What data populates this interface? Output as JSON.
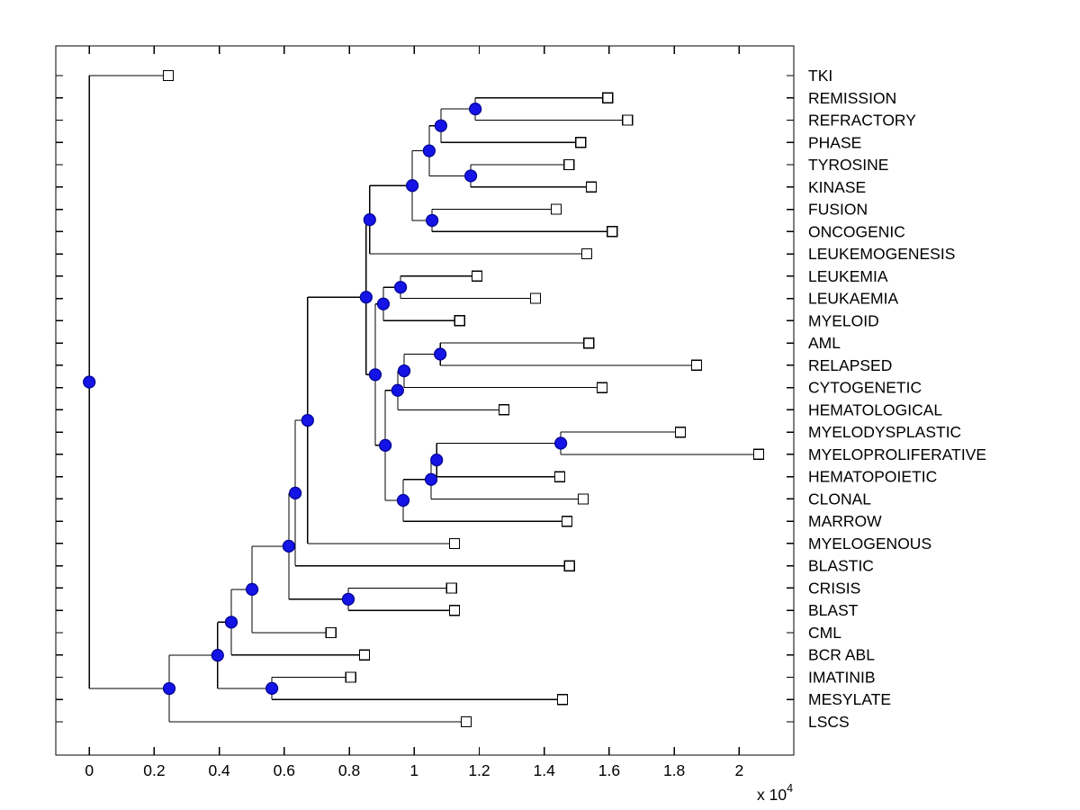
{
  "figure": {
    "background": "#ffffff",
    "line_color": "#000000",
    "node_color": "#1414e6",
    "node_edge_color": "#000090",
    "leaf_marker_fill": "#ffffff",
    "leaf_marker_edge": "#000000"
  },
  "chart_data": {
    "type": "dendrogram",
    "orientation": "left-to-right",
    "title": "",
    "xlabel": "",
    "ylabel": "",
    "exponent_label": "x 10",
    "exponent_power": "4",
    "grid": false,
    "legend_position": "none",
    "xlim": [
      -1030,
      21680
    ],
    "x_tick_values": [
      0,
      2000,
      4000,
      6000,
      8000,
      10000,
      12000,
      14000,
      16000,
      18000,
      20000
    ],
    "x_tick_labels": [
      "0",
      "0.2",
      "0.4",
      "0.6",
      "0.8",
      "1",
      "1.2",
      "1.4",
      "1.6",
      "1.8",
      "2"
    ],
    "leaf_order": [
      "TKI",
      "REMISSION",
      "REFRACTORY",
      "PHASE",
      "TYROSINE",
      "KINASE",
      "FUSION",
      "ONCOGENIC",
      "LEUKEMOGENESIS",
      "LEUKEMIA",
      "LEUKAEMIA",
      "MYELOID",
      "AML",
      "RELAPSED",
      "CYTOGENETIC",
      "HEMATOLOGICAL",
      "MYELODYSPLASTIC",
      "MYELOPROLIFERATIVE",
      "HEMATOPOIETIC",
      "CLONAL",
      "MARROW",
      "MYELOGENOUS",
      "BLASTIC",
      "CRISIS",
      "BLAST",
      "CML",
      "BCR ABL",
      "IMATINIB",
      "MESYLATE",
      "LSCS"
    ],
    "leaf_x": {
      "TKI": 2430,
      "REMISSION": 15950,
      "REFRACTORY": 16560,
      "PHASE": 15120,
      "TYROSINE": 14760,
      "KINASE": 15450,
      "FUSION": 14370,
      "ONCOGENIC": 16090,
      "LEUKEMOGENESIS": 15310,
      "LEUKEMIA": 11930,
      "LEUKAEMIA": 13730,
      "MYELOID": 11400,
      "AML": 15370,
      "RELAPSED": 18690,
      "CYTOGENETIC": 15780,
      "HEMATOLOGICAL": 12760,
      "MYELODYSPLASTIC": 18190,
      "MYELOPROLIFERATIVE": 20600,
      "HEMATOPOIETIC": 14480,
      "CLONAL": 15200,
      "MARROW": 14700,
      "MYELOGENOUS": 11240,
      "BLASTIC": 14780,
      "CRISIS": 11150,
      "BLAST": 11240,
      "CML": 7440,
      "BCR ABL": 8470,
      "IMATINIB": 8050,
      "MESYLATE": 14560,
      "LSCS": 11600
    },
    "tree": {
      "x": 0,
      "children": [
        "TKI",
        {
          "x": 2460,
          "children": [
            {
              "x": 3950,
              "children": [
                {
                  "x": 4370,
                  "children": [
                    {
                      "x": 5010,
                      "children": [
                        {
                          "x": 6140,
                          "children": [
                            {
                              "x": 6340,
                              "children": [
                                {
                                  "x": 6720,
                                  "children": [
                                    {
                                      "x": 8520,
                                      "children": [
                                        {
                                          "x": 8630,
                                          "children": [
                                            {
                                              "x": 9940,
                                              "children": [
                                                {
                                                  "x": 10460,
                                                  "children": [
                                                    {
                                                      "x": 10820,
                                                      "children": [
                                                        {
                                                          "x": 11880,
                                                          "children": [
                                                            "REMISSION",
                                                            "REFRACTORY"
                                                          ]
                                                        },
                                                        "PHASE"
                                                      ]
                                                    },
                                                    {
                                                      "x": 11740,
                                                      "children": [
                                                        "TYROSINE",
                                                        "KINASE"
                                                      ]
                                                    }
                                                  ]
                                                },
                                                {
                                                  "x": 10550,
                                                  "children": [
                                                    "FUSION",
                                                    "ONCOGENIC"
                                                  ]
                                                }
                                              ]
                                            },
                                            "LEUKEMOGENESIS"
                                          ]
                                        },
                                        {
                                          "x": 8800,
                                          "children": [
                                            {
                                              "x": 9050,
                                              "children": [
                                                {
                                                  "x": 9580,
                                                  "children": [
                                                    "LEUKEMIA",
                                                    "LEUKAEMIA"
                                                  ]
                                                },
                                                "MYELOID"
                                              ]
                                            },
                                            {
                                              "x": 9110,
                                              "children": [
                                                {
                                                  "x": 9490,
                                                  "children": [
                                                    {
                                                      "x": 9690,
                                                      "children": [
                                                        {
                                                          "x": 10800,
                                                          "children": [
                                                            "AML",
                                                            "RELAPSED"
                                                          ]
                                                        },
                                                        "CYTOGENETIC"
                                                      ]
                                                    },
                                                    "HEMATOLOGICAL"
                                                  ]
                                                },
                                                {
                                                  "x": 9660,
                                                  "children": [
                                                    {
                                                      "x": 10520,
                                                      "children": [
                                                        {
                                                          "x": 10690,
                                                          "children": [
                                                            {
                                                              "x": 14510,
                                                              "children": [
                                                                "MYELODYSPLASTIC",
                                                                "MYELOPROLIFERATIVE"
                                                              ]
                                                            },
                                                            "HEMATOPOIETIC"
                                                          ]
                                                        },
                                                        "CLONAL"
                                                      ]
                                                    },
                                                    "MARROW"
                                                  ]
                                                }
                                              ]
                                            }
                                          ]
                                        }
                                      ]
                                    },
                                    "MYELOGENOUS"
                                  ]
                                },
                                "BLASTIC"
                              ]
                            },
                            {
                              "x": 7970,
                              "children": [
                                "CRISIS",
                                "BLAST"
                              ]
                            }
                          ]
                        },
                        "CML"
                      ]
                    },
                    "BCR ABL"
                  ]
                },
                {
                  "x": 5620,
                  "children": [
                    "IMATINIB",
                    "MESYLATE"
                  ]
                }
              ]
            },
            "LSCS"
          ]
        }
      ]
    }
  }
}
